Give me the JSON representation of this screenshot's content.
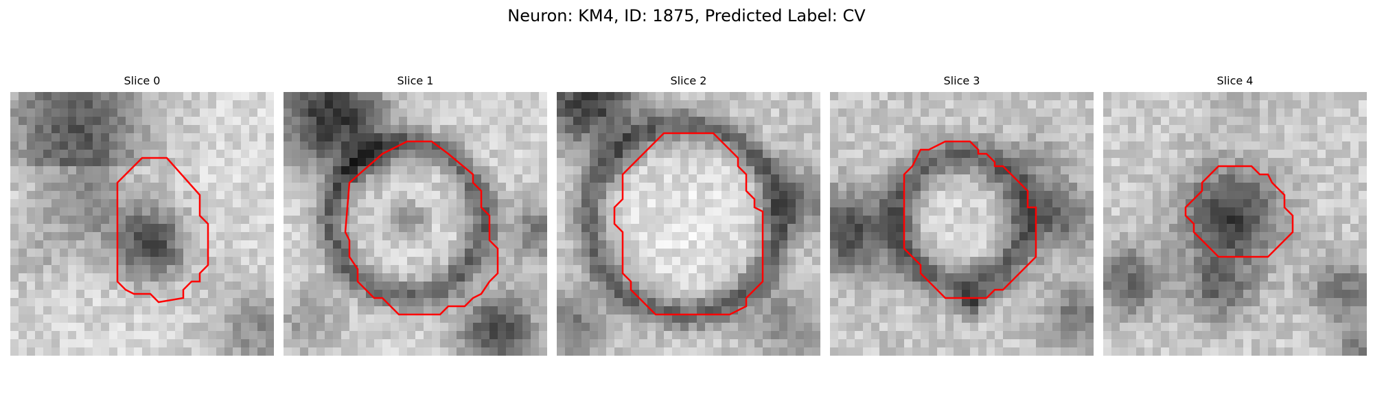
{
  "figure": {
    "title": "Neuron: KM4, ID: 1875, Predicted Label: CV"
  },
  "panels": [
    {
      "title": "Slice 0",
      "content": "grayscale microscopy patch with a dark blob outlined by a red contour"
    },
    {
      "title": "Slice 1",
      "content": "grayscale microscopy patch with a ring-shaped cell outlined by a red contour"
    },
    {
      "title": "Slice 2",
      "content": "grayscale microscopy patch with a bright round cell outlined by a red contour"
    },
    {
      "title": "Slice 3",
      "content": "grayscale microscopy patch with a round cell outlined by a red contour"
    },
    {
      "title": "Slice 4",
      "content": "grayscale microscopy patch with a small dark cell outlined by a red contour"
    }
  ],
  "colors": {
    "contour": "#ff0000"
  }
}
